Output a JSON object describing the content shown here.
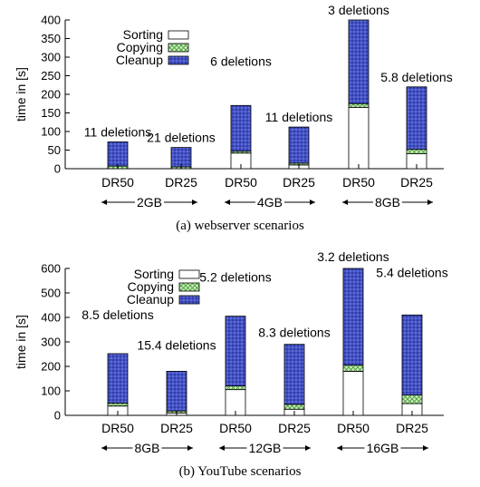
{
  "chart_data": [
    {
      "type": "bar",
      "stacked": true,
      "caption": "(a) webserver scenarios",
      "ylabel": "time in [s]",
      "ylim": [
        0,
        400
      ],
      "yticks": [
        0,
        50,
        100,
        150,
        200,
        250,
        300,
        350,
        400
      ],
      "categories": [
        "DR50",
        "DR25",
        "DR50",
        "DR25",
        "DR50",
        "DR25"
      ],
      "groups": [
        "2GB",
        "4GB",
        "8GB"
      ],
      "legend": {
        "entries": [
          "Sorting",
          "Copying",
          "Cleanup"
        ],
        "placement": "top-left"
      },
      "series": [
        {
          "name": "Sorting",
          "values": [
            0,
            0,
            42,
            10,
            165,
            40
          ]
        },
        {
          "name": "Copying",
          "values": [
            7,
            5,
            5,
            5,
            10,
            12
          ]
        },
        {
          "name": "Cleanup",
          "values": [
            65,
            52,
            123,
            97,
            225,
            168
          ]
        }
      ],
      "annotations": [
        "11 deletions",
        "21 deletions",
        "6 deletions",
        "11 deletions",
        "3 deletions",
        "5.8 deletions"
      ]
    },
    {
      "type": "bar",
      "stacked": true,
      "caption": "(b) YouTube scenarios",
      "ylabel": "time in [s]",
      "ylim": [
        0,
        600
      ],
      "yticks": [
        0,
        100,
        200,
        300,
        400,
        500,
        600
      ],
      "categories": [
        "DR50",
        "DR25",
        "DR50",
        "DR25",
        "DR50",
        "DR25"
      ],
      "groups": [
        "8GB",
        "12GB",
        "16GB"
      ],
      "legend": {
        "entries": [
          "Sorting",
          "Copying",
          "Cleanup"
        ],
        "placement": "top-left"
      },
      "series": [
        {
          "name": "Sorting",
          "values": [
            38,
            10,
            105,
            25,
            180,
            48
          ]
        },
        {
          "name": "Copying",
          "values": [
            12,
            8,
            15,
            20,
            25,
            35
          ]
        },
        {
          "name": "Cleanup",
          "values": [
            202,
            162,
            285,
            245,
            395,
            327
          ]
        }
      ],
      "annotations": [
        "8.5 deletions",
        "15.4 deletions",
        "5.2 deletions",
        "8.3 deletions",
        "3.2 deletions",
        "5.4 deletions"
      ]
    }
  ],
  "colors": {
    "sorting_fill": "#ffffff",
    "copying_fill": "#b8e6a8",
    "copying_hatch": "#4f9a3a",
    "cleanup_fill": "#4452c8",
    "cleanup_dot": "#1c267a",
    "outline": "#000000"
  }
}
